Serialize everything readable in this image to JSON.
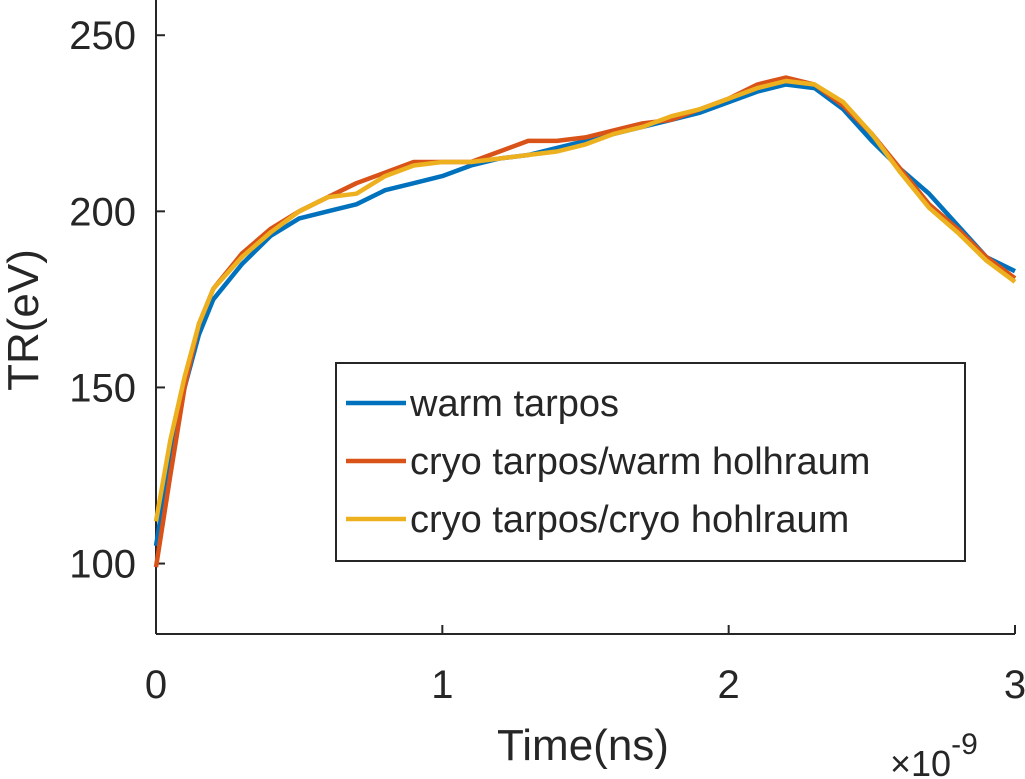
{
  "chart_data": {
    "type": "line",
    "x_label": "Time(ns)",
    "y_label": "TR(eV)",
    "x_multiplier": {
      "base": "×10",
      "exponent": "-9"
    },
    "x": [
      0,
      0.05,
      0.1,
      0.15,
      0.2,
      0.3,
      0.4,
      0.5,
      0.6,
      0.7,
      0.8,
      0.9,
      1.0,
      1.1,
      1.2,
      1.3,
      1.4,
      1.5,
      1.6,
      1.7,
      1.8,
      1.9,
      2.0,
      2.1,
      2.2,
      2.3,
      2.4,
      2.5,
      2.6,
      2.7,
      2.8,
      2.9,
      3.0
    ],
    "series": [
      {
        "name": "warm tarpos",
        "color": "#0072BD",
        "values": [
          105,
          130,
          150,
          165,
          175,
          185,
          193,
          198,
          200,
          202,
          206,
          208,
          210,
          213,
          215,
          216,
          218,
          220,
          222,
          224,
          226,
          228,
          231,
          234,
          236,
          235,
          229,
          220,
          212,
          205,
          196,
          187,
          183
        ]
      },
      {
        "name": "cryo tarpos/warm holhraum",
        "color": "#D95319",
        "values": [
          99,
          125,
          150,
          168,
          178,
          188,
          195,
          200,
          204,
          208,
          211,
          214,
          214,
          214,
          217,
          220,
          220,
          221,
          223,
          225,
          226,
          229,
          232,
          236,
          238,
          236,
          230,
          222,
          212,
          202,
          195,
          187,
          181
        ]
      },
      {
        "name": "cryo tarpos/cryo hohlraum",
        "color": "#EDB120",
        "values": [
          112,
          135,
          153,
          168,
          178,
          187,
          194,
          200,
          204,
          205,
          210,
          213,
          214,
          214,
          215,
          216,
          217,
          219,
          222,
          224,
          227,
          229,
          232,
          235,
          237,
          236,
          231,
          222,
          211,
          201,
          194,
          186,
          180
        ]
      }
    ],
    "xlim": [
      0,
      3
    ],
    "xticks": [
      0,
      1,
      2,
      3
    ],
    "ylim": [
      80,
      260
    ],
    "yticks": [
      100,
      150,
      200,
      250
    ],
    "grid": false,
    "legend_position": "east"
  }
}
